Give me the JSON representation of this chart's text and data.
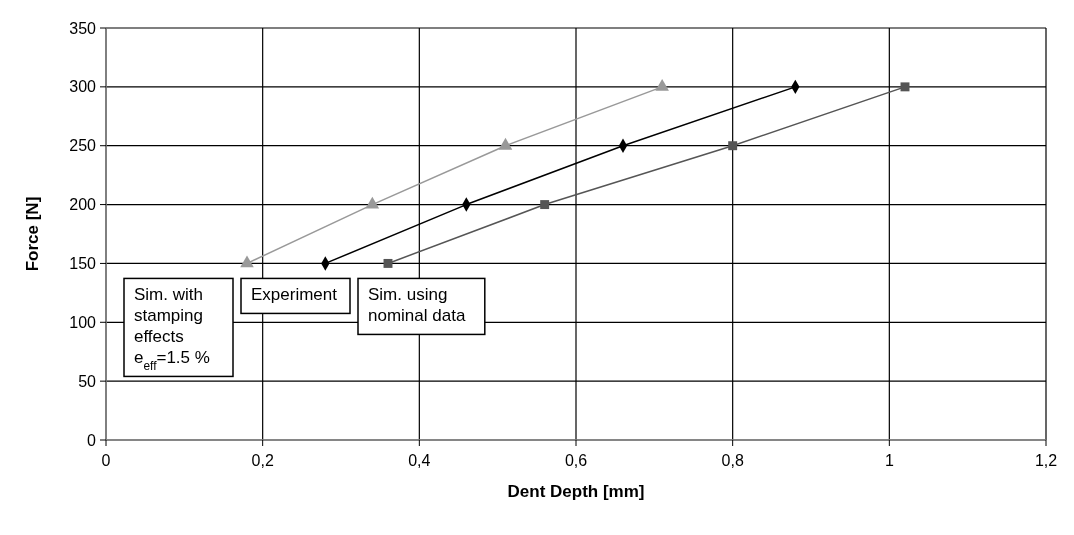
{
  "chart_data": {
    "type": "line",
    "xlabel": "Dent Depth [mm]",
    "ylabel": "Force [N]",
    "xlim": [
      0,
      1.2
    ],
    "xticks": [
      0,
      {
        "value": 0.2,
        "label": "0,2"
      },
      {
        "value": 0.4,
        "label": "0,4"
      },
      {
        "value": 0.6,
        "label": "0,6"
      },
      {
        "value": 0.8,
        "label": "0,8"
      },
      1,
      {
        "value": 1.2,
        "label": "1,2"
      }
    ],
    "ylim": [
      0,
      350
    ],
    "yticks": [
      0,
      50,
      100,
      150,
      200,
      250,
      300,
      350
    ],
    "grid": true,
    "series": [
      {
        "name": "Sim. with stamping effects e$_{eff}$=1.5 %",
        "color": "#999999",
        "marker": "triangle",
        "x": [
          0.18,
          0.34,
          0.51,
          0.71
        ],
        "values": [
          150,
          200,
          250,
          300
        ]
      },
      {
        "name": "Experiment",
        "color": "#000000",
        "marker": "diamond",
        "x": [
          0.28,
          0.46,
          0.66,
          0.88
        ],
        "values": [
          150,
          200,
          250,
          300
        ]
      },
      {
        "name": "Sim. using nominal data",
        "color": "#555555",
        "marker": "square",
        "x": [
          0.36,
          0.56,
          0.8,
          1.02
        ],
        "values": [
          150,
          200,
          250,
          300
        ]
      }
    ]
  }
}
